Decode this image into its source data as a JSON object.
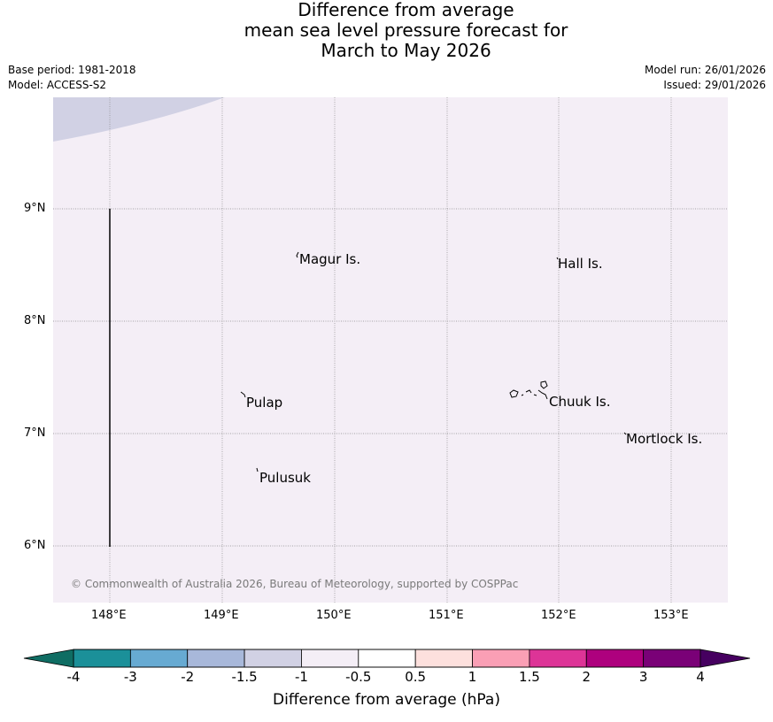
{
  "title": {
    "line1": "Difference from average",
    "line2": "mean sea level pressure forecast for",
    "line3": "March to May 2026"
  },
  "meta": {
    "base_period": "Base period: 1981-2018",
    "model": "Model: ACCESS-S2",
    "model_run": "Model run: 26/01/2026",
    "issued": "Issued: 29/01/2026"
  },
  "map": {
    "background_color": "#f4eef6",
    "corner_band_color": "#d1d1e4",
    "lat_ticks": [
      "9°N",
      "8°N",
      "7°N",
      "6°N"
    ],
    "lon_ticks": [
      "148°E",
      "149°E",
      "150°E",
      "151°E",
      "152°E",
      "153°E"
    ],
    "places": {
      "magur": "Magur Is.",
      "hall": "Hall Is.",
      "pulap": "Pulap",
      "chuuk": "Chuuk Is.",
      "mortlock": "Mortlock Is.",
      "pulusuk": "Pulusuk"
    },
    "copyright": "© Commonwealth of Australia 2026, Bureau of Meteorology, supported by COSPPac"
  },
  "colorbar": {
    "title": "Difference from average (hPa)",
    "labels": [
      "-4",
      "-3",
      "-2",
      "-1.5",
      "-1",
      "-0.5",
      "0.5",
      "1",
      "1.5",
      "2",
      "3",
      "4"
    ],
    "low_extend_color": "#0f6d63",
    "high_extend_color": "#460060",
    "segment_colors": [
      "#1b9099",
      "#67aad2",
      "#a8b8da",
      "#d1d1e4",
      "#f4eef6",
      "#ffffff",
      "#fde0dd",
      "#fa9fb5",
      "#dd3497",
      "#ae017e",
      "#7a0177"
    ]
  }
}
